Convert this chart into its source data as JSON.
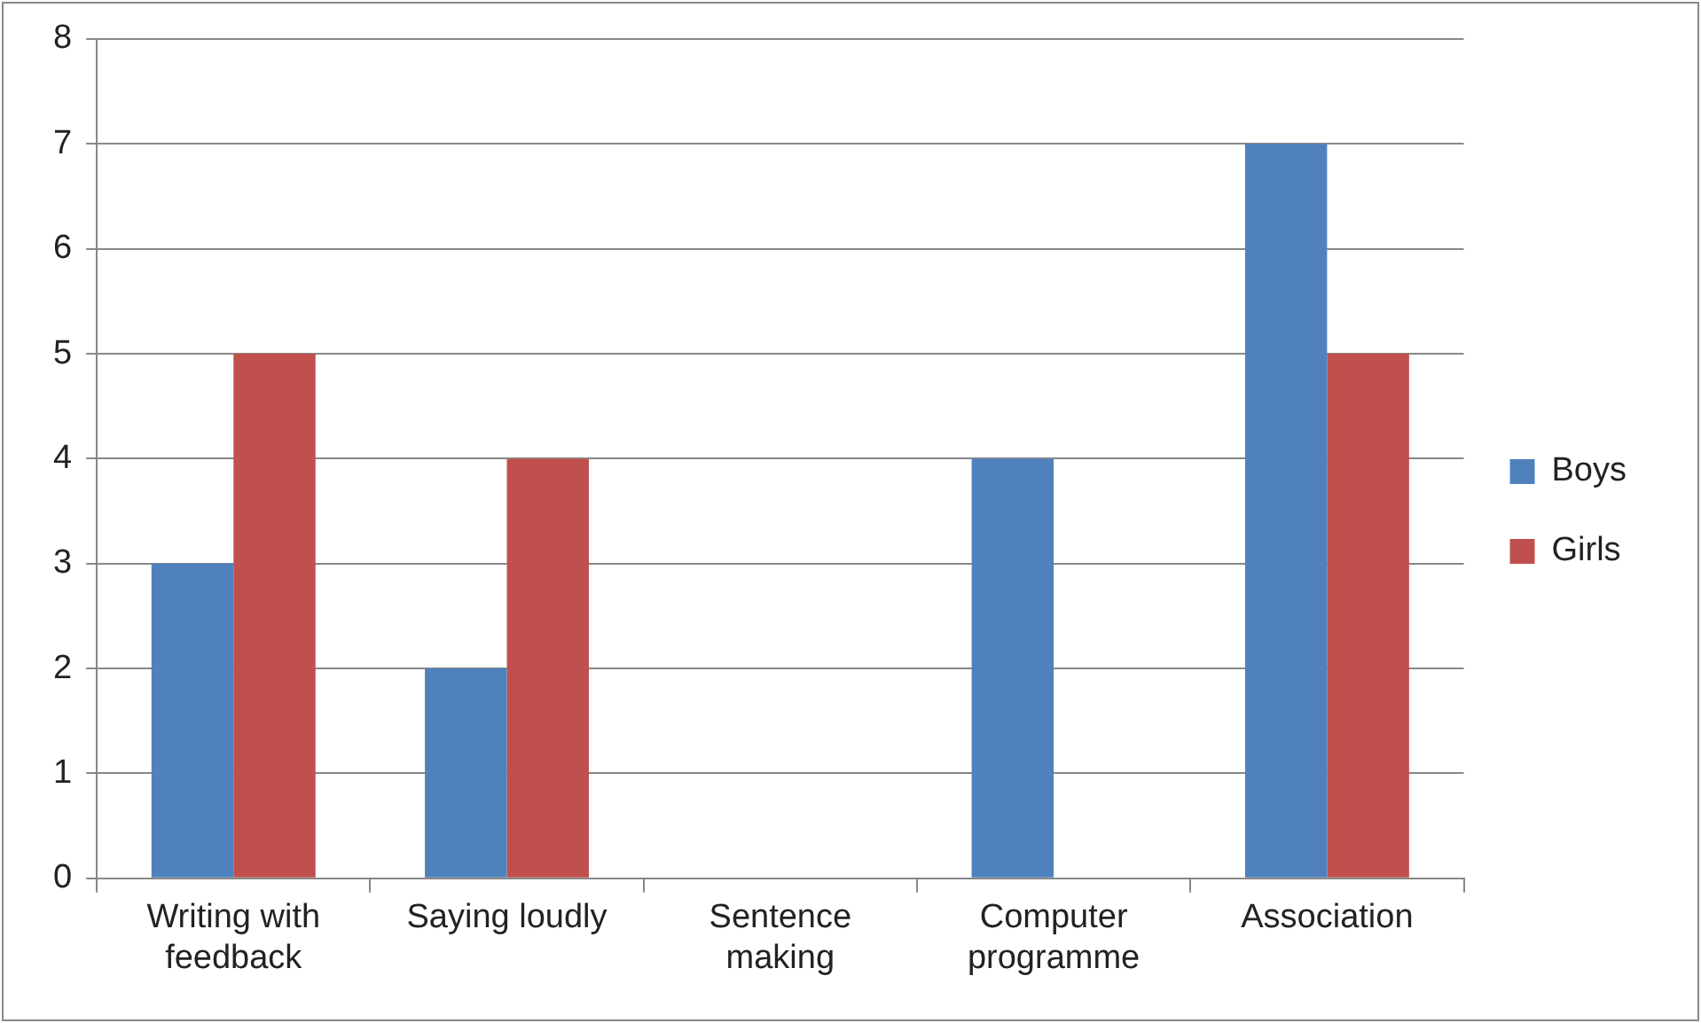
{
  "chart_data": {
    "type": "bar",
    "categories": [
      "Writing with feedback",
      "Saying loudly",
      "Sentence making",
      "Computer programme",
      "Association"
    ],
    "series": [
      {
        "name": "Boys",
        "color": "#4f81bd",
        "values": [
          3,
          2,
          0,
          4,
          7
        ]
      },
      {
        "name": "Girls",
        "color": "#c0504d",
        "values": [
          5,
          4,
          0,
          0,
          5
        ]
      }
    ],
    "ylim": [
      0,
      8
    ],
    "yticks": [
      0,
      1,
      2,
      3,
      4,
      5,
      6,
      7,
      8
    ],
    "grid": "y",
    "legend": "right"
  }
}
